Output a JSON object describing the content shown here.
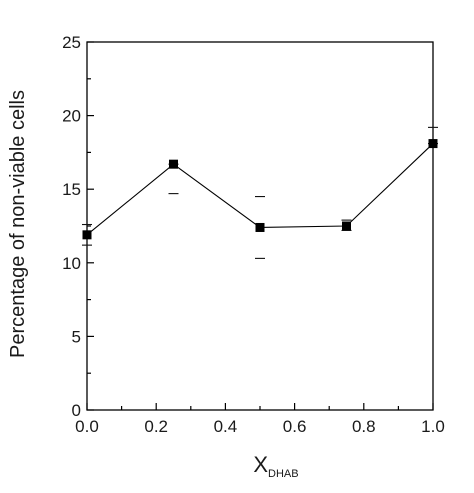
{
  "chart_data": {
    "type": "line",
    "x": [
      0.0,
      0.25,
      0.5,
      0.75,
      1.0
    ],
    "series": [
      {
        "values": [
          11.9,
          16.7,
          12.4,
          12.5,
          18.1
        ],
        "error_upper": [
          12.6,
          16.7,
          14.5,
          12.9,
          19.2
        ],
        "error_lower": [
          11.2,
          14.7,
          10.3,
          12.2,
          18.1
        ]
      }
    ],
    "xlim": [
      0.0,
      1.0
    ],
    "ylim": [
      0,
      25
    ],
    "x_ticks": [
      "0.0",
      "0.2",
      "0.4",
      "0.6",
      "0.8",
      "1.0"
    ],
    "y_ticks": [
      "0",
      "5",
      "10",
      "15",
      "20",
      "25"
    ],
    "xlabel": "X",
    "xlabel_sub": "DHAB",
    "ylabel": "Percentage of non-viable cells",
    "marker": "filled-square",
    "line_color": "#000000",
    "grid": false
  }
}
